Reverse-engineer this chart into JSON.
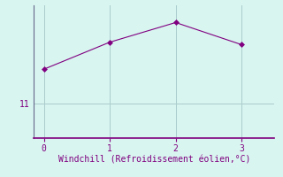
{
  "x": [
    0,
    1,
    2,
    3
  ],
  "y": [
    11.7,
    12.25,
    12.65,
    12.2
  ],
  "line_color": "#800080",
  "marker": "D",
  "marker_size": 3,
  "background_color": "#d8f5f0",
  "grid_color": "#aacccc",
  "spine_color": "#666688",
  "bottom_spine_color": "#800080",
  "xlabel": "Windchill (Refroidissement éolien,°C)",
  "xlabel_color": "#800080",
  "xlabel_fontsize": 7,
  "tick_color": "#800080",
  "tick_fontsize": 7,
  "ytick_labels": [
    "11"
  ],
  "ytick_values": [
    11
  ],
  "xlim": [
    -0.15,
    3.5
  ],
  "ylim": [
    10.3,
    13.0
  ],
  "xticks": [
    0,
    1,
    2,
    3
  ],
  "figsize": [
    3.2,
    2.0
  ],
  "dpi": 100
}
